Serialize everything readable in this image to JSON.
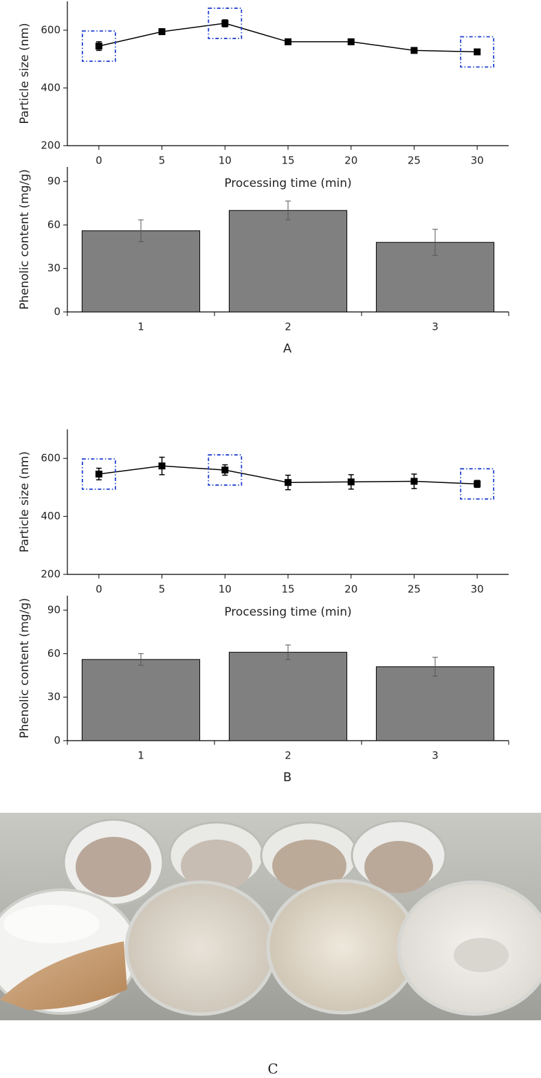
{
  "chart_data": [
    {
      "type": "line",
      "ylabel": "Particle size (nm)",
      "xlabel": "Processing time (min)",
      "x": [
        0,
        5,
        10,
        15,
        20,
        25,
        30
      ],
      "values": [
        545,
        595,
        624,
        560,
        560,
        530,
        525
      ],
      "errors": [
        15,
        10,
        12,
        5,
        8,
        7,
        8
      ],
      "color": "#000000",
      "xlim": [
        -2.5,
        32.5
      ],
      "xticks": [
        0,
        5,
        10,
        15,
        20,
        25,
        30
      ],
      "ylim": [
        200,
        700
      ],
      "yticks": [
        200,
        400,
        600
      ],
      "highlighted_x": [
        0,
        10,
        30
      ],
      "highlight_color": "#1f3fd0"
    },
    {
      "type": "bar",
      "ylabel": "Phenolic content (mg/g)",
      "categories": [
        "1",
        "2",
        "3"
      ],
      "values": [
        56,
        70,
        48
      ],
      "errors": [
        7.5,
        6.5,
        9
      ],
      "color": "#808080",
      "ylim": [
        0,
        100
      ],
      "yticks": [
        0,
        30,
        60,
        90
      ]
    },
    {
      "type": "line",
      "ylabel": "Particle size (nm)",
      "xlabel": "Processing time (min)",
      "x": [
        0,
        5,
        10,
        15,
        20,
        25,
        30
      ],
      "values": [
        546,
        574,
        560,
        517,
        519,
        521,
        512
      ],
      "errors": [
        20,
        30,
        18,
        25,
        25,
        25,
        12
      ],
      "color": "#000000",
      "xlim": [
        -2.5,
        32.5
      ],
      "xticks": [
        0,
        5,
        10,
        15,
        20,
        25,
        30
      ],
      "ylim": [
        200,
        700
      ],
      "yticks": [
        200,
        400,
        600
      ],
      "highlighted_x": [
        0,
        10,
        30
      ],
      "highlight_color": "#1f3fd0"
    },
    {
      "type": "bar",
      "ylabel": "Phenolic content (mg/g)",
      "categories": [
        "1",
        "2",
        "3"
      ],
      "values": [
        56,
        61,
        51
      ],
      "errors": [
        4,
        5,
        6.5
      ],
      "color": "#808080",
      "ylim": [
        0,
        100
      ],
      "yticks": [
        0,
        30,
        60,
        90
      ]
    }
  ],
  "panel_labels": [
    "A",
    "B",
    "C"
  ]
}
